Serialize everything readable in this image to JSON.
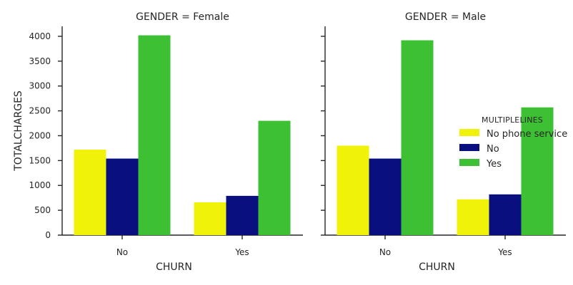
{
  "chart_data": [
    {
      "type": "bar",
      "title": "GENDER = Female",
      "xlabel": "CHURN",
      "ylabel": "TOTALCHARGES",
      "categories": [
        "No",
        "Yes"
      ],
      "ylim": [
        0,
        4200
      ],
      "yticks": [
        "0",
        "500",
        "1000",
        "1500",
        "2000",
        "2500",
        "3000",
        "3500",
        "4000"
      ],
      "series": [
        {
          "name": "No phone service",
          "values": [
            1720,
            660
          ]
        },
        {
          "name": "No",
          "values": [
            1540,
            790
          ]
        },
        {
          "name": "Yes",
          "values": [
            4020,
            2300
          ]
        }
      ]
    },
    {
      "type": "bar",
      "title": "GENDER = Male",
      "xlabel": "CHURN",
      "ylabel": "",
      "categories": [
        "No",
        "Yes"
      ],
      "ylim": [
        0,
        4200
      ],
      "series": [
        {
          "name": "No phone service",
          "values": [
            1800,
            720
          ]
        },
        {
          "name": "No",
          "values": [
            1540,
            820
          ]
        },
        {
          "name": "Yes",
          "values": [
            3920,
            2570
          ]
        }
      ]
    }
  ],
  "legend": {
    "title": "MULTIPLELINES",
    "placement": "center-right",
    "items": [
      {
        "label": "No phone service",
        "color": "#f0f20a"
      },
      {
        "label": "No",
        "color": "#0a0f80"
      },
      {
        "label": "Yes",
        "color": "#3ec034"
      }
    ]
  },
  "grid": false
}
